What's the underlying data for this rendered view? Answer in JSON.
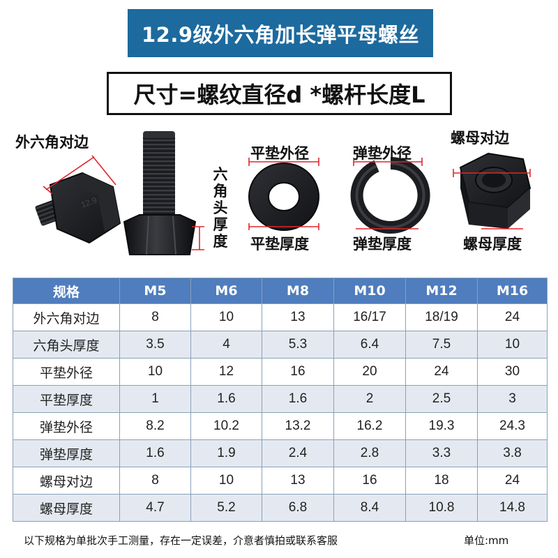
{
  "title": "12.9级外六角加长弹平母螺丝",
  "formula": "尺寸=螺纹直径d *螺杆长度L",
  "labels": {
    "hex_across_flats": "外六角对边",
    "head_thickness_chars": [
      "六",
      "角",
      "头",
      "厚",
      "度"
    ],
    "flat_washer_od": "平垫外径",
    "flat_washer_thickness": "平垫厚度",
    "spring_washer_od": "弹垫外径",
    "spring_washer_thickness": "弹垫厚度",
    "nut_across_flats": "螺母对边",
    "nut_thickness": "螺母厚度",
    "head_marking": "12.9"
  },
  "table": {
    "headers": [
      "规格",
      "M5",
      "M6",
      "M8",
      "M10",
      "M12",
      "M16"
    ],
    "rows": [
      [
        "外六角对边",
        "8",
        "10",
        "13",
        "16/17",
        "18/19",
        "24"
      ],
      [
        "六角头厚度",
        "3.5",
        "4",
        "5.3",
        "6.4",
        "7.5",
        "10"
      ],
      [
        "平垫外径",
        "10",
        "12",
        "16",
        "20",
        "24",
        "30"
      ],
      [
        "平垫厚度",
        "1",
        "1.6",
        "1.6",
        "2",
        "2.5",
        "3"
      ],
      [
        "弹垫外径",
        "8.2",
        "10.2",
        "13.2",
        "16.2",
        "19.3",
        "24.3"
      ],
      [
        "弹垫厚度",
        "1.6",
        "1.9",
        "2.4",
        "2.8",
        "3.3",
        "3.8"
      ],
      [
        "螺母对边",
        "8",
        "10",
        "13",
        "16",
        "18",
        "24"
      ],
      [
        "螺母厚度",
        "4.7",
        "5.2",
        "6.8",
        "8.4",
        "10.8",
        "14.8"
      ]
    ]
  },
  "footer": {
    "note": "以下规格为单批次手工测量，存在一定误差，介意者慎拍或联系客服",
    "unit": "单位:mm"
  },
  "colors": {
    "banner": "#1d6a9e",
    "table_header": "#4f7dbd",
    "row_alt": "#e4e9f1",
    "dimension_line": "#e0262b",
    "metal": "#1e1f22"
  }
}
